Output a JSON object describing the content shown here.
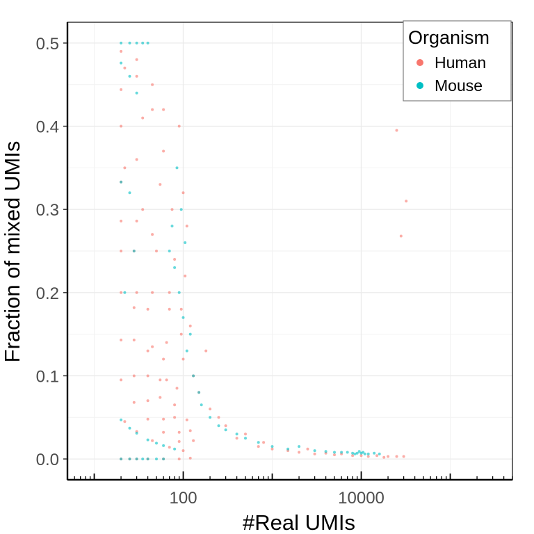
{
  "chart_data": {
    "type": "scatter",
    "title": "",
    "xlabel": "#Real UMIs",
    "ylabel": "Fraction of mixed UMIs",
    "x_scale": "log10",
    "xlim": [
      5,
      500000
    ],
    "ylim": [
      -0.025,
      0.525
    ],
    "x_ticks": [
      100,
      10000
    ],
    "x_tick_labels": [
      "100",
      "10000"
    ],
    "y_ticks": [
      0.0,
      0.1,
      0.2,
      0.3,
      0.4,
      0.5
    ],
    "y_tick_labels": [
      "0.0",
      "0.1",
      "0.2",
      "0.3",
      "0.4",
      "0.5"
    ],
    "grid": true,
    "legend": {
      "title": "Organism",
      "placement": "top-right",
      "entries": [
        {
          "label": "Human",
          "color": "#F8766D"
        },
        {
          "label": "Mouse",
          "color": "#00BFC4"
        }
      ]
    },
    "series": [
      {
        "name": "Human",
        "color": "#F8766D",
        "points": [
          [
            20,
            0.0
          ],
          [
            25,
            0.0
          ],
          [
            30,
            0.0
          ],
          [
            40,
            0.0
          ],
          [
            60,
            0.0
          ],
          [
            90,
            0.0
          ],
          [
            120,
            0.001
          ],
          [
            22,
            0.045
          ],
          [
            30,
            0.033
          ],
          [
            45,
            0.022
          ],
          [
            70,
            0.014
          ],
          [
            100,
            0.01
          ],
          [
            20,
            0.095
          ],
          [
            28,
            0.068
          ],
          [
            40,
            0.048
          ],
          [
            60,
            0.032
          ],
          [
            90,
            0.021
          ],
          [
            20,
            0.143
          ],
          [
            28,
            0.1
          ],
          [
            40,
            0.07
          ],
          [
            60,
            0.048
          ],
          [
            90,
            0.032
          ],
          [
            130,
            0.022
          ],
          [
            20,
            0.2
          ],
          [
            28,
            0.143
          ],
          [
            40,
            0.1
          ],
          [
            55,
            0.074
          ],
          [
            80,
            0.05
          ],
          [
            120,
            0.034
          ],
          [
            20,
            0.25
          ],
          [
            28,
            0.182
          ],
          [
            40,
            0.13
          ],
          [
            55,
            0.095
          ],
          [
            80,
            0.065
          ],
          [
            110,
            0.047
          ],
          [
            20,
            0.286
          ],
          [
            30,
            0.2
          ],
          [
            45,
            0.135
          ],
          [
            65,
            0.095
          ],
          [
            20,
            0.333
          ],
          [
            28,
            0.25
          ],
          [
            40,
            0.18
          ],
          [
            60,
            0.12
          ],
          [
            85,
            0.085
          ],
          [
            20,
            0.4
          ],
          [
            30,
            0.286
          ],
          [
            45,
            0.2
          ],
          [
            65,
            0.14
          ],
          [
            22,
            0.35
          ],
          [
            35,
            0.3
          ],
          [
            50,
            0.25
          ],
          [
            70,
            0.2
          ],
          [
            95,
            0.15
          ],
          [
            20,
            0.444
          ],
          [
            30,
            0.36
          ],
          [
            45,
            0.27
          ],
          [
            70,
            0.18
          ],
          [
            22,
            0.47
          ],
          [
            35,
            0.41
          ],
          [
            55,
            0.33
          ],
          [
            80,
            0.24
          ],
          [
            30,
            0.46
          ],
          [
            45,
            0.42
          ],
          [
            60,
            0.37
          ],
          [
            75,
            0.3
          ],
          [
            20,
            0.49
          ],
          [
            30,
            0.48
          ],
          [
            45,
            0.45
          ],
          [
            60,
            0.42
          ],
          [
            100,
            0.12
          ],
          [
            150,
            0.08
          ],
          [
            200,
            0.06
          ],
          [
            300,
            0.04
          ],
          [
            500,
            0.03
          ],
          [
            800,
            0.02
          ],
          [
            130,
            0.1
          ],
          [
            180,
            0.13
          ],
          [
            250,
            0.05
          ],
          [
            400,
            0.025
          ],
          [
            700,
            0.015
          ],
          [
            1000,
            0.012
          ],
          [
            1500,
            0.01
          ],
          [
            2000,
            0.008
          ],
          [
            3000,
            0.006
          ],
          [
            5000,
            0.005
          ],
          [
            8000,
            0.004
          ],
          [
            10000,
            0.004
          ],
          [
            12000,
            0.003
          ],
          [
            15000,
            0.004
          ],
          [
            20000,
            0.003
          ],
          [
            25000,
            0.003
          ],
          [
            30000,
            0.003
          ],
          [
            18000,
            0.002
          ],
          [
            6000,
            0.006
          ],
          [
            4000,
            0.007
          ],
          [
            2500,
            0.012
          ],
          [
            100,
            0.32
          ],
          [
            110,
            0.28
          ],
          [
            90,
            0.4
          ],
          [
            105,
            0.22
          ],
          [
            95,
            0.18
          ],
          [
            120,
            0.16
          ],
          [
            25000,
            0.395
          ],
          [
            32000,
            0.31
          ],
          [
            28000,
            0.268
          ]
        ]
      },
      {
        "name": "Mouse",
        "color": "#00BFC4",
        "points": [
          [
            20,
            0.0
          ],
          [
            25,
            0.0
          ],
          [
            30,
            0.0
          ],
          [
            35,
            0.0
          ],
          [
            40,
            0.0
          ],
          [
            50,
            0.0
          ],
          [
            60,
            0.0
          ],
          [
            20,
            0.047
          ],
          [
            25,
            0.037
          ],
          [
            30,
            0.031
          ],
          [
            40,
            0.023
          ],
          [
            50,
            0.019
          ],
          [
            60,
            0.016
          ],
          [
            80,
            0.012
          ],
          [
            20,
            0.5
          ],
          [
            25,
            0.5
          ],
          [
            30,
            0.5
          ],
          [
            35,
            0.5
          ],
          [
            40,
            0.5
          ],
          [
            20,
            0.476
          ],
          [
            25,
            0.46
          ],
          [
            30,
            0.44
          ],
          [
            20,
            0.333
          ],
          [
            25,
            0.32
          ],
          [
            28,
            0.25
          ],
          [
            22,
            0.2
          ],
          [
            80,
            0.23
          ],
          [
            90,
            0.2
          ],
          [
            100,
            0.17
          ],
          [
            110,
            0.13
          ],
          [
            130,
            0.1
          ],
          [
            150,
            0.08
          ],
          [
            70,
            0.25
          ],
          [
            120,
            0.15
          ],
          [
            160,
            0.065
          ],
          [
            200,
            0.05
          ],
          [
            250,
            0.04
          ],
          [
            300,
            0.035
          ],
          [
            400,
            0.03
          ],
          [
            500,
            0.025
          ],
          [
            700,
            0.02
          ],
          [
            1000,
            0.015
          ],
          [
            1500,
            0.012
          ],
          [
            2000,
            0.015
          ],
          [
            3000,
            0.01
          ],
          [
            4000,
            0.009
          ],
          [
            5000,
            0.008
          ],
          [
            6000,
            0.008
          ],
          [
            7000,
            0.008
          ],
          [
            8000,
            0.007
          ],
          [
            9000,
            0.007
          ],
          [
            10000,
            0.007
          ],
          [
            11000,
            0.006
          ],
          [
            12000,
            0.006
          ],
          [
            14000,
            0.007
          ],
          [
            16000,
            0.006
          ],
          [
            9500,
            0.009
          ],
          [
            10500,
            0.008
          ],
          [
            8500,
            0.006
          ],
          [
            95,
            0.3
          ],
          [
            85,
            0.35
          ],
          [
            75,
            0.28
          ],
          [
            105,
            0.26
          ]
        ]
      }
    ]
  }
}
